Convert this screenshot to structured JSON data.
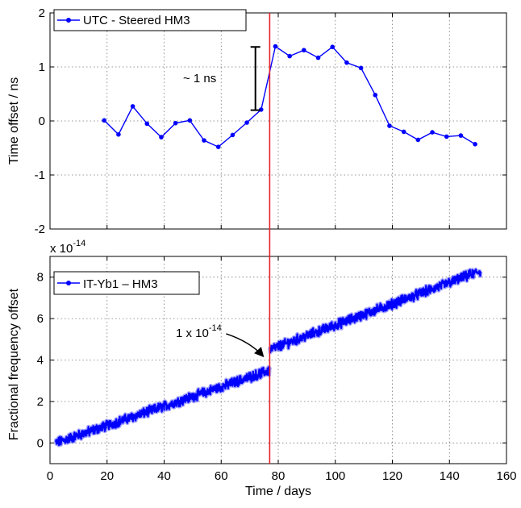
{
  "chart_data": [
    {
      "type": "line",
      "ylabel": "Time offset / ns",
      "xlim": [
        0,
        160
      ],
      "ylim": [
        -2,
        2
      ],
      "yticks": [
        -2,
        -1,
        0,
        1,
        2
      ],
      "grid": true,
      "legend_position": "top-left",
      "series": [
        {
          "name": "UTC - Steered HM3",
          "color": "#0000ff",
          "x": [
            19,
            24,
            29,
            34,
            39,
            44,
            49,
            54,
            59,
            64,
            69,
            74,
            79,
            84,
            89,
            94,
            99,
            104,
            109,
            114,
            119,
            124,
            129,
            134,
            139,
            144,
            149
          ],
          "y": [
            0.01,
            -0.25,
            0.27,
            -0.05,
            -0.3,
            -0.04,
            0.01,
            -0.36,
            -0.48,
            -0.26,
            -0.03,
            0.21,
            1.38,
            1.2,
            1.31,
            1.17,
            1.37,
            1.08,
            0.98,
            0.48,
            -0.09,
            -0.2,
            -0.35,
            -0.21,
            -0.29,
            -0.27,
            -0.43
          ]
        }
      ],
      "annotations": [
        {
          "text": "~ 1 ns",
          "bar_x": 72,
          "bar_y_range": [
            0.2,
            1.37
          ]
        }
      ]
    },
    {
      "type": "line",
      "xlabel": "Time / days",
      "ylabel": "Fractional frequency offset",
      "y_exponent_label": "x 10",
      "y_exponent_power": "-14",
      "xlim": [
        0,
        160
      ],
      "xticks": [
        0,
        20,
        40,
        60,
        80,
        100,
        120,
        140,
        160
      ],
      "ylim": [
        -1,
        9
      ],
      "yticks": [
        0,
        2,
        4,
        6,
        8
      ],
      "grid": true,
      "legend_position": "top-left",
      "series": [
        {
          "name": "IT-Yb1 – HM3",
          "color": "#0000ff",
          "segments": [
            {
              "x_start": 2,
              "y_start": 0.0,
              "x_end": 77,
              "y_end": 3.5
            },
            {
              "x_start": 77,
              "y_start": 4.5,
              "x_end": 151,
              "y_end": 8.3
            }
          ],
          "noise_amplitude": 0.2
        }
      ],
      "annotations": [
        {
          "text": "1 x 10",
          "superscript": "-14",
          "arrow_target_x": 77,
          "arrow_target_y": 4.1
        }
      ]
    }
  ],
  "marker": {
    "x": 77,
    "color": "#e8202a"
  },
  "legend": {
    "top_label": "UTC - Steered HM3",
    "bottom_label": "IT-Yb1 – HM3"
  },
  "labels": {
    "top_ylabel": "Time offset / ns",
    "bottom_ylabel": "Fractional frequency offset",
    "xlabel": "Time / days",
    "annot_ns": "~ 1 ns",
    "annot_step_base": "1 x 10",
    "annot_step_exp": "-14",
    "exp_base": "x 10",
    "exp_power": "-14"
  }
}
